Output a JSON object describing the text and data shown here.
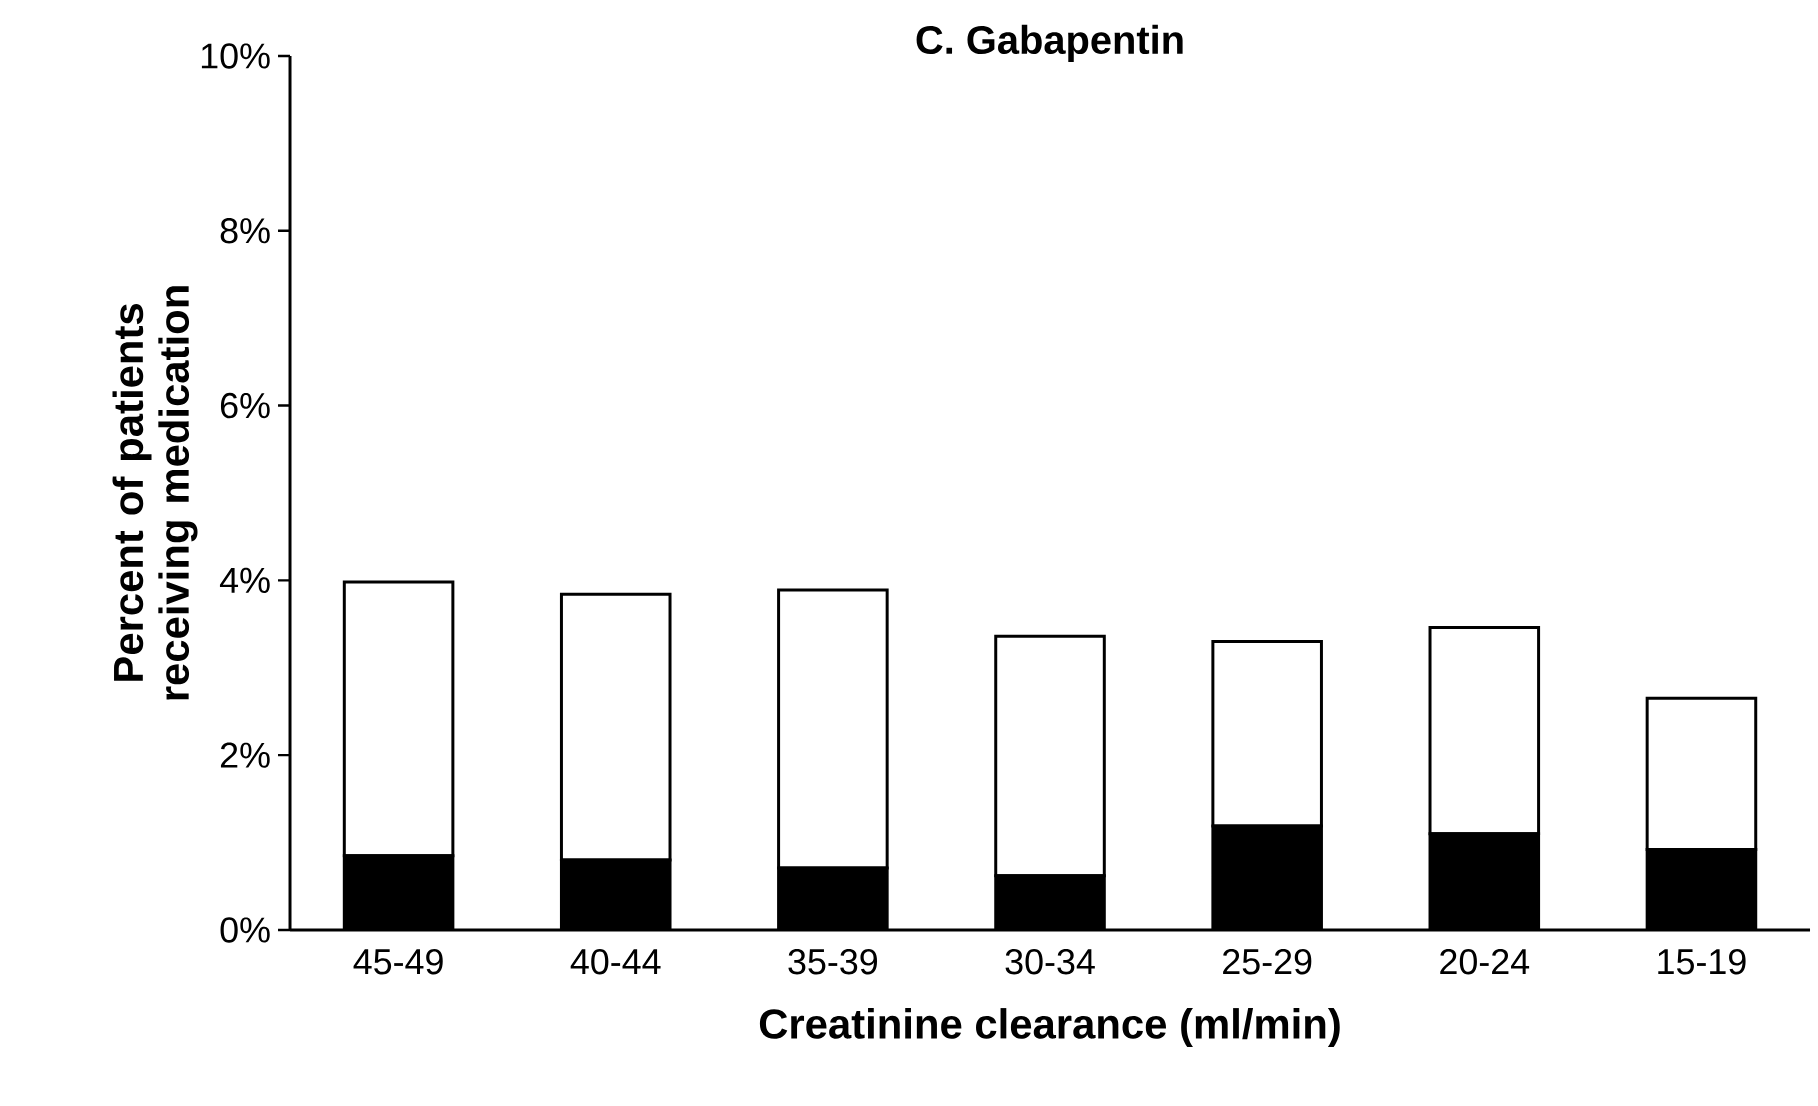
{
  "chart_data": {
    "type": "bar",
    "title": "C. Gabapentin",
    "xlabel": "Creatinine clearance (ml/min)",
    "ylabel": "Percent of patients receiving medication",
    "categories": [
      "45-49",
      "40-44",
      "35-39",
      "30-34",
      "25-29",
      "20-24",
      "15-19"
    ],
    "stacked": true,
    "series": [
      {
        "color": "#000000",
        "values": [
          0.85,
          0.8,
          0.71,
          0.62,
          1.19,
          1.1,
          0.92
        ]
      },
      {
        "color": "#ffffff",
        "values": [
          3.13,
          3.04,
          3.18,
          2.74,
          2.11,
          2.36,
          1.73
        ]
      }
    ],
    "ylim": [
      0,
      10
    ],
    "yticks": [
      {
        "value": 0,
        "label": "0%"
      },
      {
        "value": 2,
        "label": "2%"
      },
      {
        "value": 4,
        "label": "4%"
      },
      {
        "value": 6,
        "label": "6%"
      },
      {
        "value": 8,
        "label": "8%"
      },
      {
        "value": 10,
        "label": "10%"
      }
    ],
    "grid": false
  }
}
